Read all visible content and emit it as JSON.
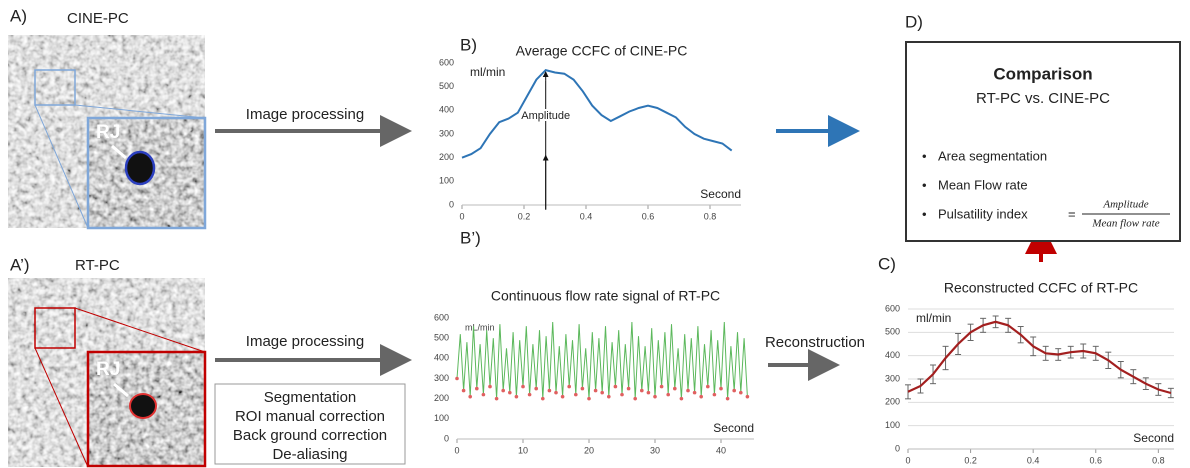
{
  "panels": {
    "a_label": "A)",
    "a_title": "CINE-PC",
    "a_rj": "RJ",
    "a2_label": "A’)",
    "a2_title": "RT-PC",
    "a2_rj": "RJ",
    "process_top": "Image processing",
    "process_bottom": "Image processing",
    "steps": [
      "Segmentation",
      "ROI manual correction",
      "Back ground correction",
      "De-aliasing"
    ],
    "b_label": "B)",
    "b2_label": "B’)",
    "c_label": "C)",
    "d_label": "D)",
    "reconstruction": "Reconstruction",
    "comparison": {
      "title": "Comparison",
      "subtitle": "RT-PC vs. CINE-PC",
      "items": [
        "Area segmentation",
        "Mean Flow rate",
        "Pulsatility index"
      ],
      "equals": "=",
      "numerator": "Amplitude",
      "denominator": "Mean flow rate"
    }
  },
  "chart_data": [
    {
      "type": "line",
      "title": "Average CCFC of CINE-PC",
      "y_label": "ml/min",
      "x_label": "Second",
      "annotation": "Amplitude",
      "color": "#2e75b6",
      "grid": false,
      "xlim": [
        0,
        0.9
      ],
      "xticks": [
        0,
        0.2,
        0.4,
        0.6,
        0.8
      ],
      "ylim": [
        0,
        600
      ],
      "yticks": [
        0,
        100,
        200,
        300,
        400,
        500,
        600
      ],
      "x": [
        0,
        0.03,
        0.06,
        0.09,
        0.12,
        0.15,
        0.18,
        0.21,
        0.24,
        0.27,
        0.3,
        0.33,
        0.36,
        0.39,
        0.42,
        0.45,
        0.48,
        0.51,
        0.54,
        0.57,
        0.6,
        0.63,
        0.66,
        0.69,
        0.72,
        0.75,
        0.78,
        0.81,
        0.84,
        0.87
      ],
      "values": [
        200,
        215,
        240,
        300,
        350,
        365,
        390,
        460,
        530,
        570,
        560,
        555,
        530,
        480,
        420,
        380,
        355,
        375,
        395,
        410,
        420,
        410,
        390,
        370,
        330,
        300,
        280,
        270,
        260,
        230
      ]
    },
    {
      "type": "line",
      "title": "Continuous flow rate signal of RT-PC",
      "y_label": "mL/min",
      "x_label": "Second",
      "color": "#5cb85c",
      "trough_color": "#e06060",
      "grid": false,
      "xlim": [
        0,
        45
      ],
      "xticks": [
        0,
        10,
        20,
        30,
        40
      ],
      "ylim": [
        0,
        600
      ],
      "yticks": [
        0,
        100,
        200,
        300,
        400,
        500,
        600
      ],
      "x": [
        0,
        0.5,
        1,
        1.5,
        2,
        2.5,
        3,
        3.5,
        4,
        4.5,
        5,
        5.5,
        6,
        6.5,
        7,
        7.5,
        8,
        8.5,
        9,
        9.5,
        10,
        10.5,
        11,
        11.5,
        12,
        12.5,
        13,
        13.5,
        14,
        14.5,
        15,
        15.5,
        16,
        16.5,
        17,
        17.5,
        18,
        18.5,
        19,
        19.5,
        20,
        20.5,
        21,
        21.5,
        22,
        22.5,
        23,
        23.5,
        24,
        24.5,
        25,
        25.5,
        26,
        26.5,
        27,
        27.5,
        28,
        28.5,
        29,
        29.5,
        30,
        30.5,
        31,
        31.5,
        32,
        32.5,
        33,
        33.5,
        34,
        34.5,
        35,
        35.5,
        36,
        36.5,
        37,
        37.5,
        38,
        38.5,
        39,
        39.5,
        40,
        40.5,
        41,
        41.5,
        42,
        42.5,
        43,
        43.5,
        44
      ],
      "values": [
        300,
        520,
        240,
        480,
        210,
        560,
        250,
        470,
        220,
        540,
        260,
        500,
        200,
        570,
        240,
        450,
        230,
        530,
        210,
        490,
        260,
        560,
        220,
        470,
        250,
        540,
        200,
        510,
        240,
        580,
        230,
        460,
        210,
        520,
        260,
        490,
        220,
        570,
        250,
        450,
        200,
        530,
        240,
        500,
        230,
        560,
        210,
        480,
        260,
        540,
        220,
        470,
        250,
        580,
        200,
        510,
        240,
        460,
        230,
        550,
        210,
        490,
        260,
        530,
        220,
        570,
        250,
        450,
        200,
        520,
        240,
        500,
        230,
        560,
        210,
        470,
        260,
        540,
        220,
        490,
        250,
        580,
        200,
        460,
        240,
        530,
        230,
        500,
        210
      ]
    },
    {
      "type": "line",
      "title": "Reconstructed CCFC of RT-PC",
      "y_label": "ml/min",
      "x_label": "Second",
      "color": "#a31f1f",
      "grid": true,
      "xlim": [
        0,
        0.85
      ],
      "xticks": [
        0,
        0.2,
        0.4,
        0.6,
        0.8
      ],
      "ylim": [
        0,
        600
      ],
      "yticks": [
        0,
        100,
        200,
        300,
        400,
        500,
        600
      ],
      "x": [
        0,
        0.04,
        0.08,
        0.12,
        0.16,
        0.2,
        0.24,
        0.28,
        0.32,
        0.36,
        0.4,
        0.44,
        0.48,
        0.52,
        0.56,
        0.6,
        0.64,
        0.68,
        0.72,
        0.76,
        0.8,
        0.84
      ],
      "values": [
        245,
        270,
        320,
        390,
        450,
        500,
        530,
        545,
        530,
        490,
        440,
        410,
        405,
        415,
        420,
        410,
        380,
        340,
        310,
        280,
        255,
        240
      ],
      "errors": [
        30,
        30,
        40,
        50,
        45,
        35,
        30,
        25,
        30,
        35,
        40,
        30,
        25,
        25,
        30,
        30,
        35,
        35,
        30,
        25,
        25,
        20
      ]
    }
  ]
}
